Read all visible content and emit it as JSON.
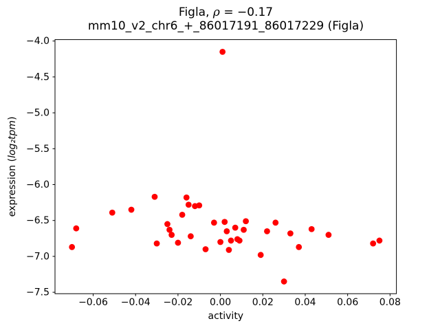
{
  "figure": {
    "title_line1_prefix": "Figla, ",
    "title_line1_math": "ρ",
    "title_line1_suffix": " = −0.17",
    "title_line2": "mm10_v2_chr6_+_86017191_86017229 (Figla)"
  },
  "chart_data": {
    "type": "scatter",
    "title": "Figla, ρ = −0.17",
    "subtitle": "mm10_v2_chr6_+_86017191_86017229 (Figla)",
    "xlabel": "activity",
    "ylabel_prefix": "expression (",
    "ylabel_math": "log₂tpm",
    "ylabel_suffix": ")",
    "marker_color": "#ff0000",
    "xlim": [
      -0.078,
      0.083
    ],
    "ylim": [
      -7.52,
      -3.98
    ],
    "x_ticks": [
      -0.06,
      -0.04,
      -0.02,
      0.0,
      0.02,
      0.04,
      0.06,
      0.08
    ],
    "x_tick_labels": [
      "−0.06",
      "−0.04",
      "−0.02",
      "0.00",
      "0.02",
      "0.04",
      "0.06",
      "0.08"
    ],
    "y_ticks": [
      -7.5,
      -7.0,
      -6.5,
      -6.0,
      -5.5,
      -5.0,
      -4.5,
      -4.0
    ],
    "y_tick_labels": [
      "−7.5",
      "−7.0",
      "−6.5",
      "−6.0",
      "−5.5",
      "−5.0",
      "−4.5",
      "−4.0"
    ],
    "points": [
      [
        -0.07,
        -6.87
      ],
      [
        -0.068,
        -6.61
      ],
      [
        -0.051,
        -6.39
      ],
      [
        -0.042,
        -6.35
      ],
      [
        -0.031,
        -6.17
      ],
      [
        -0.03,
        -6.82
      ],
      [
        -0.025,
        -6.55
      ],
      [
        -0.024,
        -6.63
      ],
      [
        -0.023,
        -6.7
      ],
      [
        -0.02,
        -6.81
      ],
      [
        -0.018,
        -6.42
      ],
      [
        -0.016,
        -6.18
      ],
      [
        -0.015,
        -6.28
      ],
      [
        -0.014,
        -6.72
      ],
      [
        -0.012,
        -6.3
      ],
      [
        -0.01,
        -6.29
      ],
      [
        -0.007,
        -6.9
      ],
      [
        -0.003,
        -6.53
      ],
      [
        0.0,
        -6.8
      ],
      [
        0.001,
        -4.15
      ],
      [
        0.002,
        -6.52
      ],
      [
        0.003,
        -6.65
      ],
      [
        0.004,
        -6.91
      ],
      [
        0.005,
        -6.78
      ],
      [
        0.007,
        -6.6
      ],
      [
        0.008,
        -6.76
      ],
      [
        0.009,
        -6.78
      ],
      [
        0.011,
        -6.63
      ],
      [
        0.012,
        -6.51
      ],
      [
        0.019,
        -6.98
      ],
      [
        0.022,
        -6.65
      ],
      [
        0.026,
        -6.53
      ],
      [
        0.03,
        -7.35
      ],
      [
        0.033,
        -6.68
      ],
      [
        0.037,
        -6.87
      ],
      [
        0.043,
        -6.62
      ],
      [
        0.051,
        -6.7
      ],
      [
        0.072,
        -6.82
      ],
      [
        0.075,
        -6.78
      ]
    ]
  }
}
